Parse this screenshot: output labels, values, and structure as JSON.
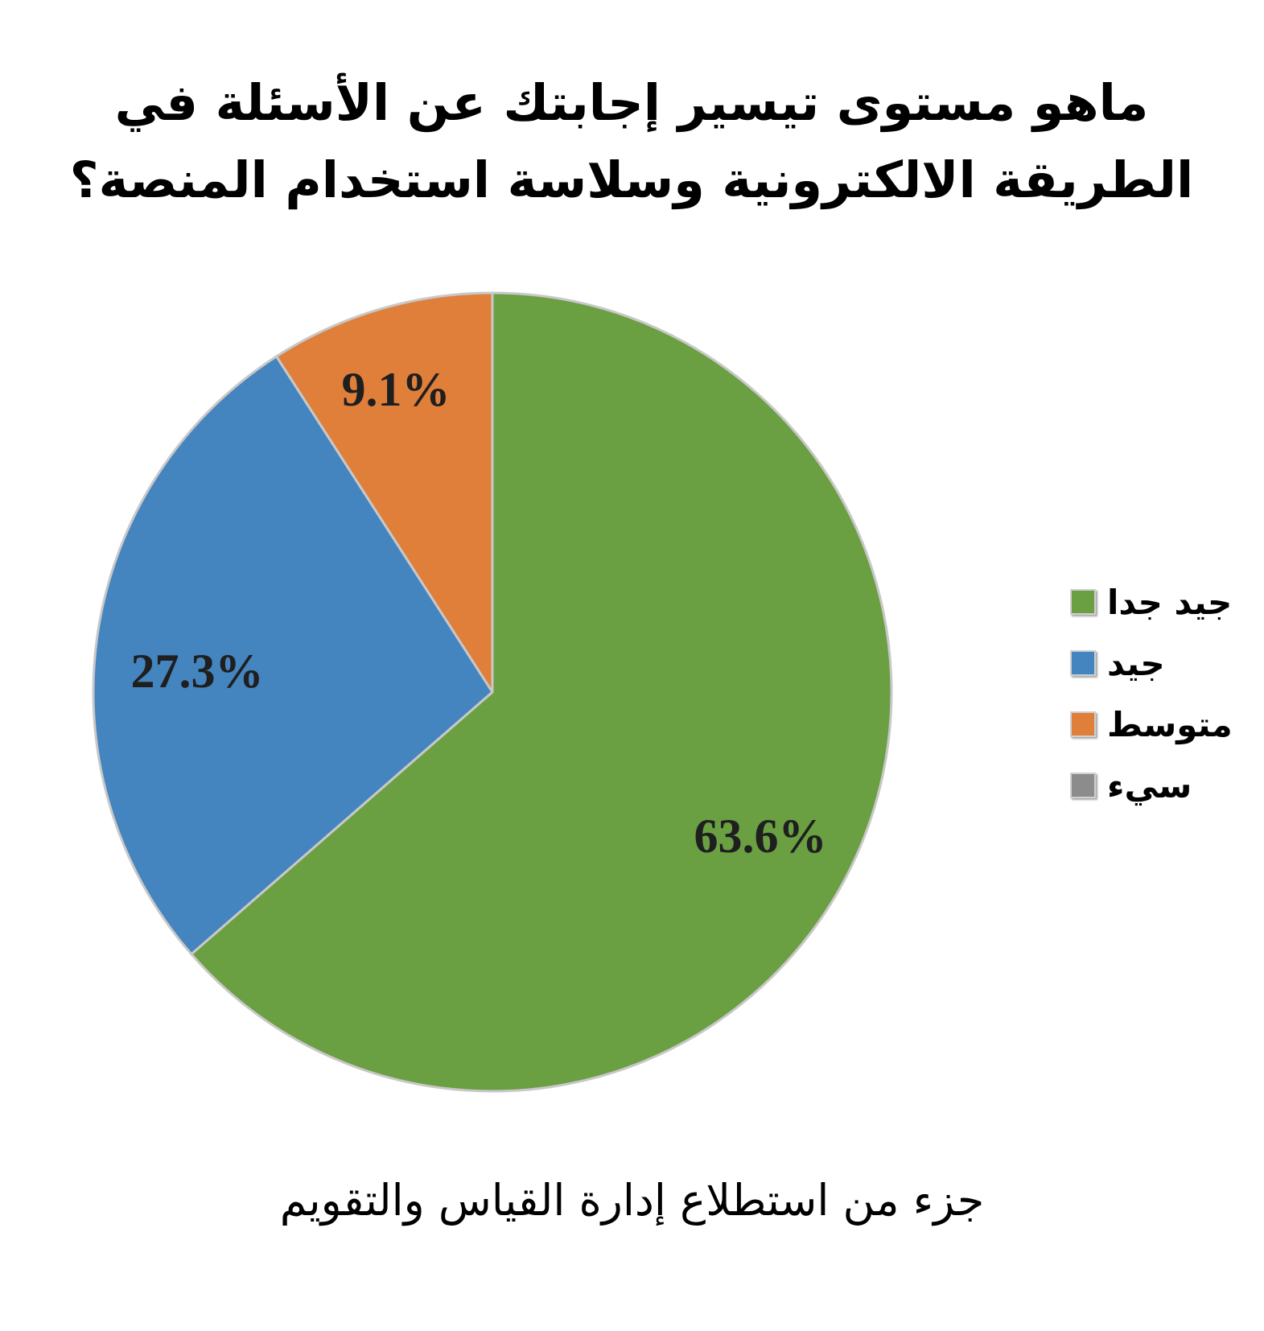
{
  "chart_data": {
    "type": "pie",
    "title": "ماهو مستوى تيسير إجابتك عن الأسئلة في الطريقة الالكترونية وسلاسة استخدام المنصة؟",
    "source": "جزء من استطلاع إدارة القياس والتقويم",
    "slices": [
      {
        "name": "جيد جدا",
        "value": 63.6,
        "label": "63.6%",
        "color": "#6a9f42"
      },
      {
        "name": "جيد",
        "value": 27.3,
        "label": "27.3%",
        "color": "#4484bf"
      },
      {
        "name": "متوسط",
        "value": 9.1,
        "label": "9.1%",
        "color": "#e07f3a"
      },
      {
        "name": "سيء",
        "value": 0,
        "label": "",
        "color": "#8c8c8c"
      }
    ],
    "legend_position": "right",
    "start": "12 o'clock",
    "direction": "clockwise"
  }
}
